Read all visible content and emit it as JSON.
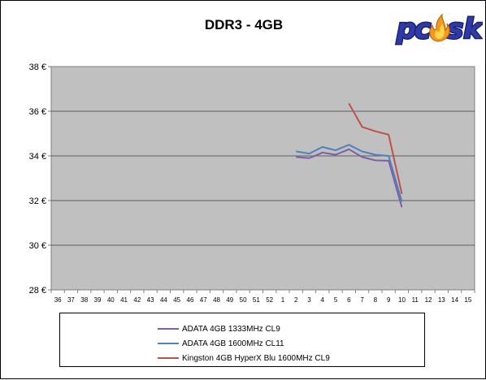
{
  "chart_data": {
    "type": "line",
    "title": "DDR3 - 4GB",
    "x_categories": [
      "36",
      "37",
      "38",
      "39",
      "40",
      "41",
      "42",
      "43",
      "44",
      "45",
      "46",
      "47",
      "48",
      "49",
      "50",
      "51",
      "52",
      "1",
      "2",
      "3",
      "4",
      "5",
      "6",
      "7",
      "8",
      "9",
      "10",
      "11",
      "12",
      "13",
      "14",
      "15"
    ],
    "y_axis": {
      "min": 28,
      "max": 38,
      "step": 2,
      "tick_labels": [
        "38 €",
        "36 €",
        "34 €",
        "32 €",
        "30 €",
        "28 €"
      ],
      "gridlines": true
    },
    "plot_background": "#c0c0c0",
    "legend_position": "bottom",
    "series": [
      {
        "name": "ADATA 4GB 1333MHz CL9",
        "color": "#7f5fa6",
        "points": [
          [
            "2",
            33.95
          ],
          [
            "3",
            33.9
          ],
          [
            "4",
            34.15
          ],
          [
            "5",
            34.05
          ],
          [
            "6",
            34.3
          ],
          [
            "7",
            33.95
          ],
          [
            "8",
            33.8
          ],
          [
            "9",
            33.78
          ],
          [
            "10",
            31.7
          ]
        ]
      },
      {
        "name": "ADATA 4GB 1600MHz CL11",
        "color": "#4f81bd",
        "points": [
          [
            "2",
            34.2
          ],
          [
            "3",
            34.1
          ],
          [
            "4",
            34.4
          ],
          [
            "5",
            34.25
          ],
          [
            "6",
            34.5
          ],
          [
            "7",
            34.2
          ],
          [
            "8",
            34.05
          ],
          [
            "9",
            34.0
          ],
          [
            "10",
            31.95
          ]
        ]
      },
      {
        "name": "Kingston 4GB HyperX Blu 1600MHz CL9",
        "color": "#c0504d",
        "points": [
          [
            "6",
            36.35
          ],
          [
            "7",
            35.3
          ],
          [
            "8",
            35.1
          ],
          [
            "9",
            34.95
          ],
          [
            "10",
            32.3
          ]
        ]
      }
    ]
  },
  "logo": {
    "text": "pcsk",
    "colors": {
      "main": "#2f3aa8",
      "flame": "#f39a1e"
    }
  }
}
